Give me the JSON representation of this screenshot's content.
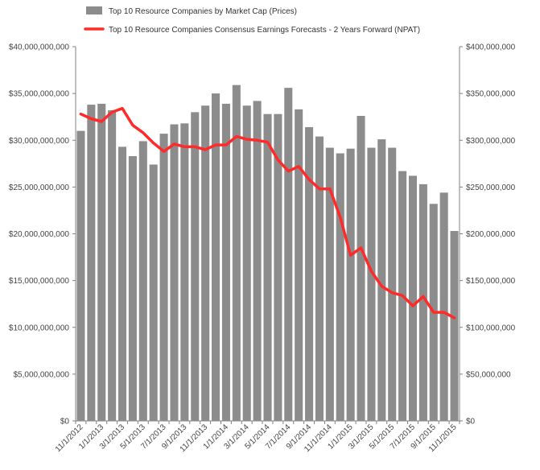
{
  "chart_data": {
    "type": "bar",
    "categories": [
      "11/1/2012",
      "12/1/2012",
      "1/1/2013",
      "2/1/2013",
      "3/1/2013",
      "4/1/2013",
      "5/1/2013",
      "6/1/2013",
      "7/1/2013",
      "8/1/2013",
      "9/1/2013",
      "10/1/2013",
      "11/1/2013",
      "12/1/2013",
      "1/1/2014",
      "2/1/2014",
      "3/1/2014",
      "4/1/2014",
      "5/1/2014",
      "6/1/2014",
      "7/1/2014",
      "8/1/2014",
      "9/1/2014",
      "10/1/2014",
      "11/1/2014",
      "12/1/2014",
      "1/1/2015",
      "2/1/2015",
      "3/1/2015",
      "4/1/2015",
      "5/1/2015",
      "6/1/2015",
      "7/1/2015",
      "8/1/2015",
      "9/1/2015",
      "10/1/2015",
      "11/1/2015"
    ],
    "x_tick_labels": [
      "11/1/2012",
      "1/1/2013",
      "3/1/2013",
      "5/1/2013",
      "7/1/2013",
      "9/1/2013",
      "11/1/2013",
      "1/1/2014",
      "3/1/2014",
      "5/1/2014",
      "7/1/2014",
      "9/1/2014",
      "11/1/2014",
      "1/1/2015",
      "3/1/2015",
      "5/1/2015",
      "7/1/2015",
      "9/1/2015",
      "11/1/2015"
    ],
    "series": [
      {
        "name": "Top 10 Resource Companies by Market Cap (Prices)",
        "type": "bar",
        "axis": "left",
        "color": "#8c8c8c",
        "values": [
          31000000000,
          33800000000,
          33900000000,
          33200000000,
          29300000000,
          28300000000,
          29900000000,
          27400000000,
          30700000000,
          31700000000,
          31800000000,
          33000000000,
          33700000000,
          35000000000,
          33900000000,
          35900000000,
          33700000000,
          34200000000,
          32800000000,
          32800000000,
          35600000000,
          33300000000,
          31400000000,
          30400000000,
          29200000000,
          28600000000,
          29100000000,
          32600000000,
          29200000000,
          30100000000,
          29200000000,
          26700000000,
          26200000000,
          25300000000,
          23200000000,
          24400000000,
          20300000000
        ]
      },
      {
        "name": "Top 10 Resource Companies Consensus Earnings Forecasts - 2 Years Forward (NPAT)",
        "type": "line",
        "axis": "right",
        "color": "#ff2a2a",
        "values": [
          328000000,
          323000000,
          320000000,
          330000000,
          334000000,
          316000000,
          308000000,
          297000000,
          288000000,
          296000000,
          293000000,
          293000000,
          290000000,
          295000000,
          295000000,
          304000000,
          301000000,
          300000000,
          298000000,
          279000000,
          267000000,
          272000000,
          258000000,
          248000000,
          248000000,
          218000000,
          177000000,
          185000000,
          160000000,
          144000000,
          137000000,
          134000000,
          123000000,
          133000000,
          116000000,
          116000000,
          110000000
        ]
      }
    ],
    "y_left": {
      "min": 0,
      "max": 40000000000,
      "ticks": [
        "$0",
        "$5,000,000,000",
        "$10,000,000,000",
        "$15,000,000,000",
        "$20,000,000,000",
        "$25,000,000,000",
        "$30,000,000,000",
        "$35,000,000,000",
        "$40,000,000,000"
      ]
    },
    "y_right": {
      "min": 0,
      "max": 400000000,
      "ticks": [
        "$0",
        "$50,000,000",
        "$100,000,000",
        "$150,000,000",
        "$200,000,000",
        "$250,000,000",
        "$300,000,000",
        "$350,000,000",
        "$400,000,000"
      ]
    },
    "grid": false,
    "legend_position": "top-left",
    "title": "",
    "xlabel": "",
    "ylabel": ""
  }
}
